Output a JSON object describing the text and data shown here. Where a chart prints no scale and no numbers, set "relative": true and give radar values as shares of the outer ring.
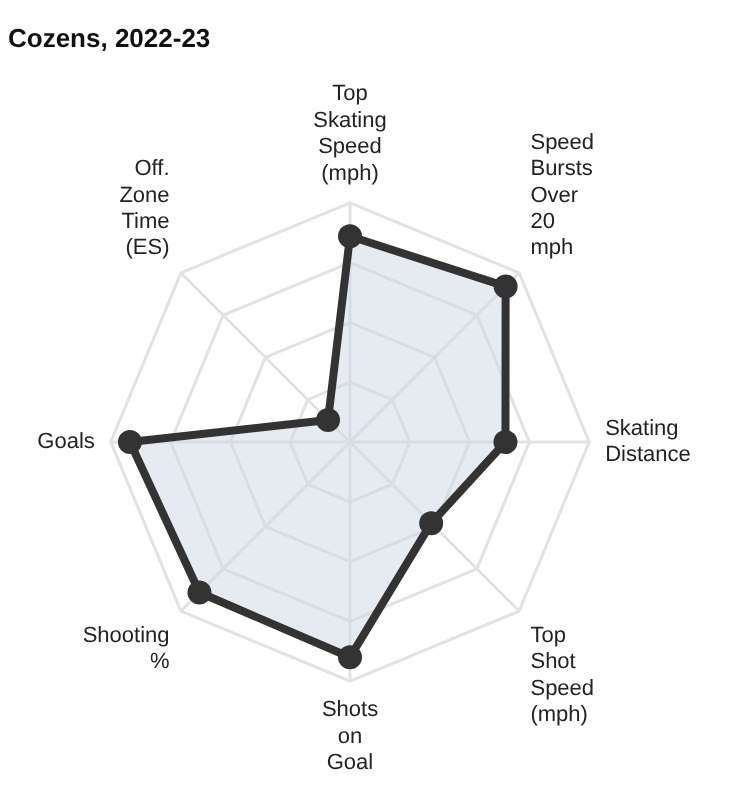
{
  "chart_data": {
    "type": "radar",
    "title": "Cozens, 2022-23",
    "relative": true,
    "grid": true,
    "legend": false,
    "marker": "circle",
    "categories": [
      "Top Skating Speed (mph)",
      "Speed Bursts Over 20 mph",
      "Skating Distance",
      "Top Shot Speed (mph)",
      "Shots on Goal",
      "Shooting %",
      "Goals",
      "Off. Zone Time (ES)"
    ],
    "series": [
      {
        "color": "#333333",
        "values": [
          0.86,
          0.92,
          0.65,
          0.48,
          0.9,
          0.89,
          0.92,
          0.13
        ]
      }
    ]
  }
}
